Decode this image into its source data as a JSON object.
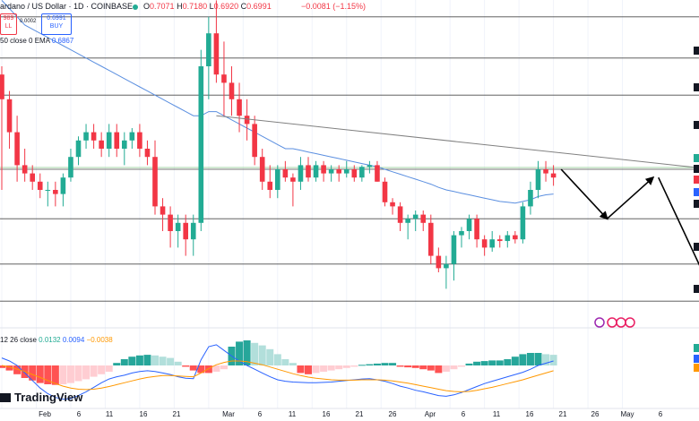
{
  "header": {
    "symbol": "ardano / US Dollar · 1D · COINBASE",
    "o_label": "O",
    "o": "0.7071",
    "h_label": "H",
    "h": "0.7180",
    "l_label": "L",
    "l": "0.6920",
    "c_label": "C",
    "c": "0.6991",
    "change": "−0.0081 (−1.15%)"
  },
  "trade": {
    "sell_price": "989",
    "sell_label": "LL",
    "spread": "0.0002",
    "buy_price": "0.6991",
    "buy_label": "BUY"
  },
  "ema_label": "50 close 0 EMA",
  "ema_value": "0.6867",
  "macd": {
    "label": "12 26 close",
    "v1": "0.0132",
    "v2": "0.0094",
    "v3": "−0.0038"
  },
  "logo": "TradingView",
  "x_ticks": [
    "Feb",
    "6",
    "11",
    "16",
    "21",
    "Mar",
    "6",
    "11",
    "16",
    "21",
    "26",
    "Apr",
    "6",
    "11",
    "16",
    "21",
    "26",
    "May",
    "6"
  ],
  "colors": {
    "up": "#22ab94",
    "down": "#f23645",
    "ema": "#5b8fe0",
    "trend": "#808080",
    "support": "#4a4a4a",
    "green_level": "#a5d6a7",
    "macd_line": "#2962ff",
    "signal_line": "#ff9800",
    "hist_up_strong": "#26a69a",
    "hist_up_weak": "#b2dfdb",
    "hist_down_strong": "#ff5252",
    "hist_down_weak": "#ffcdd2"
  },
  "chart_data": {
    "type": "candlestick",
    "note_axis": "price axis labels are clipped at the right edge",
    "candles": [
      [
        0.69,
        0.7,
        0.55,
        0.66
      ],
      [
        0.66,
        0.67,
        0.6,
        0.62
      ],
      [
        0.62,
        0.64,
        0.56,
        0.58
      ],
      [
        0.58,
        0.6,
        0.56,
        0.57
      ],
      [
        0.57,
        0.58,
        0.55,
        0.56
      ],
      [
        0.56,
        0.57,
        0.54,
        0.55
      ],
      [
        0.55,
        0.56,
        0.53,
        0.55
      ],
      [
        0.55,
        0.56,
        0.53,
        0.545
      ],
      [
        0.545,
        0.57,
        0.53,
        0.565
      ],
      [
        0.565,
        0.6,
        0.56,
        0.59
      ],
      [
        0.59,
        0.615,
        0.58,
        0.61
      ],
      [
        0.61,
        0.63,
        0.6,
        0.62
      ],
      [
        0.62,
        0.63,
        0.6,
        0.61
      ],
      [
        0.61,
        0.62,
        0.59,
        0.6
      ],
      [
        0.6,
        0.63,
        0.59,
        0.62
      ],
      [
        0.62,
        0.63,
        0.59,
        0.6
      ],
      [
        0.6,
        0.62,
        0.58,
        0.61
      ],
      [
        0.61,
        0.625,
        0.6,
        0.62
      ],
      [
        0.62,
        0.63,
        0.59,
        0.6
      ],
      [
        0.6,
        0.61,
        0.58,
        0.59
      ],
      [
        0.59,
        0.61,
        0.52,
        0.53
      ],
      [
        0.53,
        0.54,
        0.5,
        0.52
      ],
      [
        0.52,
        0.53,
        0.48,
        0.5
      ],
      [
        0.5,
        0.52,
        0.48,
        0.51
      ],
      [
        0.51,
        0.52,
        0.47,
        0.49
      ],
      [
        0.49,
        0.52,
        0.47,
        0.51
      ],
      [
        0.51,
        0.72,
        0.5,
        0.7
      ],
      [
        0.7,
        0.76,
        0.66,
        0.74
      ],
      [
        0.74,
        0.78,
        0.68,
        0.69
      ],
      [
        0.69,
        0.73,
        0.64,
        0.68
      ],
      [
        0.68,
        0.7,
        0.64,
        0.66
      ],
      [
        0.66,
        0.68,
        0.62,
        0.64
      ],
      [
        0.64,
        0.66,
        0.61,
        0.63
      ],
      [
        0.63,
        0.64,
        0.58,
        0.59
      ],
      [
        0.59,
        0.6,
        0.55,
        0.56
      ],
      [
        0.56,
        0.58,
        0.54,
        0.55
      ],
      [
        0.55,
        0.58,
        0.54,
        0.575
      ],
      [
        0.575,
        0.585,
        0.56,
        0.565
      ],
      [
        0.565,
        0.57,
        0.53,
        0.56
      ],
      [
        0.56,
        0.59,
        0.55,
        0.58
      ],
      [
        0.58,
        0.59,
        0.56,
        0.565
      ],
      [
        0.565,
        0.585,
        0.56,
        0.58
      ],
      [
        0.58,
        0.585,
        0.56,
        0.57
      ],
      [
        0.57,
        0.58,
        0.56,
        0.575
      ],
      [
        0.575,
        0.58,
        0.56,
        0.57
      ],
      [
        0.57,
        0.585,
        0.565,
        0.575
      ],
      [
        0.575,
        0.58,
        0.56,
        0.565
      ],
      [
        0.565,
        0.58,
        0.56,
        0.578
      ],
      [
        0.578,
        0.585,
        0.57,
        0.58
      ],
      [
        0.58,
        0.585,
        0.56,
        0.56
      ],
      [
        0.56,
        0.565,
        0.53,
        0.535
      ],
      [
        0.535,
        0.54,
        0.52,
        0.53
      ],
      [
        0.53,
        0.535,
        0.5,
        0.51
      ],
      [
        0.51,
        0.52,
        0.49,
        0.515
      ],
      [
        0.515,
        0.525,
        0.5,
        0.52
      ],
      [
        0.52,
        0.525,
        0.5,
        0.51
      ],
      [
        0.51,
        0.52,
        0.46,
        0.47
      ],
      [
        0.47,
        0.48,
        0.45,
        0.455
      ],
      [
        0.455,
        0.47,
        0.43,
        0.46
      ],
      [
        0.46,
        0.5,
        0.44,
        0.495
      ],
      [
        0.495,
        0.505,
        0.48,
        0.5
      ],
      [
        0.5,
        0.52,
        0.49,
        0.515
      ],
      [
        0.515,
        0.52,
        0.48,
        0.49
      ],
      [
        0.49,
        0.495,
        0.47,
        0.48
      ],
      [
        0.48,
        0.5,
        0.475,
        0.49
      ],
      [
        0.49,
        0.495,
        0.48,
        0.488
      ],
      [
        0.488,
        0.5,
        0.48,
        0.495
      ],
      [
        0.495,
        0.5,
        0.485,
        0.49
      ],
      [
        0.49,
        0.535,
        0.485,
        0.53
      ],
      [
        0.53,
        0.56,
        0.52,
        0.55
      ],
      [
        0.55,
        0.585,
        0.54,
        0.575
      ],
      [
        0.575,
        0.585,
        0.56,
        0.57
      ],
      [
        0.57,
        0.58,
        0.555,
        0.565
      ]
    ],
    "ema50": [
      0.78,
      0.77,
      0.76,
      0.75,
      0.745,
      0.74,
      0.735,
      0.73,
      0.725,
      0.72,
      0.715,
      0.71,
      0.705,
      0.7,
      0.695,
      0.69,
      0.685,
      0.68,
      0.675,
      0.67,
      0.665,
      0.66,
      0.655,
      0.65,
      0.645,
      0.64,
      0.64,
      0.645,
      0.645,
      0.64,
      0.635,
      0.63,
      0.625,
      0.62,
      0.615,
      0.61,
      0.605,
      0.6,
      0.6,
      0.598,
      0.596,
      0.594,
      0.592,
      0.59,
      0.588,
      0.586,
      0.584,
      0.582,
      0.58,
      0.578,
      0.575,
      0.572,
      0.569,
      0.566,
      0.563,
      0.56,
      0.557,
      0.553,
      0.55,
      0.548,
      0.546,
      0.544,
      0.542,
      0.54,
      0.538,
      0.536,
      0.535,
      0.534,
      0.536,
      0.538,
      0.542,
      0.544,
      0.545
    ],
    "levels": [
      0.76,
      0.71,
      0.665,
      0.575,
      0.515,
      0.46,
      0.415
    ],
    "green_level": 0.575,
    "trendline": [
      [
        28,
        0.64
      ],
      [
        86,
        0.575
      ]
    ],
    "projection": [
      [
        73,
        0.575
      ],
      [
        79,
        0.515
      ],
      [
        85,
        0.565
      ],
      [
        92,
        0.44
      ]
    ],
    "macd_hist": [
      -0.004,
      -0.008,
      -0.014,
      -0.02,
      -0.024,
      -0.028,
      -0.03,
      -0.031,
      -0.03,
      -0.028,
      -0.025,
      -0.022,
      -0.018,
      -0.014,
      -0.01,
      0.004,
      0.01,
      0.014,
      0.016,
      0.017,
      0.016,
      0.014,
      0.012,
      0.006,
      -0.002,
      -0.008,
      -0.012,
      -0.012,
      -0.01,
      -0.006,
      0.03,
      0.038,
      0.04,
      0.036,
      0.032,
      0.026,
      0.018,
      0.01,
      0.004,
      -0.012,
      -0.014,
      -0.012,
      -0.01,
      -0.008,
      -0.006,
      -0.004,
      -0.002,
      0.001,
      0.002,
      0.003,
      0.004,
      0.004,
      -0.002,
      -0.003,
      -0.004,
      -0.006,
      -0.008,
      -0.012,
      -0.01,
      -0.006,
      -0.002,
      0.003,
      0.006,
      0.007,
      0.008,
      0.008,
      0.01,
      0.014,
      0.018,
      0.02,
      0.02,
      0.018,
      0.017
    ],
    "macd_line": [
      0.02,
      0.012,
      0.0,
      -0.02,
      -0.04,
      -0.06,
      -0.075,
      -0.085,
      -0.09,
      -0.088,
      -0.08,
      -0.07,
      -0.058,
      -0.046,
      -0.036,
      -0.03,
      -0.026,
      -0.02,
      -0.016,
      -0.014,
      -0.016,
      -0.02,
      -0.024,
      -0.03,
      -0.034,
      -0.035,
      0.015,
      0.05,
      0.055,
      0.04,
      0.025,
      0.012,
      0.0,
      -0.01,
      -0.02,
      -0.03,
      -0.038,
      -0.042,
      -0.044,
      -0.045,
      -0.046,
      -0.046,
      -0.045,
      -0.044,
      -0.042,
      -0.04,
      -0.038,
      -0.036,
      -0.035,
      -0.038,
      -0.042,
      -0.048,
      -0.055,
      -0.06,
      -0.066,
      -0.07,
      -0.075,
      -0.08,
      -0.082,
      -0.078,
      -0.072,
      -0.064,
      -0.056,
      -0.048,
      -0.042,
      -0.036,
      -0.03,
      -0.024,
      -0.018,
      -0.01,
      0.0,
      0.006,
      0.012
    ],
    "signal_line": [
      0.0,
      -0.004,
      -0.01,
      -0.016,
      -0.024,
      -0.032,
      -0.04,
      -0.048,
      -0.055,
      -0.06,
      -0.063,
      -0.064,
      -0.063,
      -0.06,
      -0.056,
      -0.051,
      -0.046,
      -0.041,
      -0.036,
      -0.032,
      -0.029,
      -0.027,
      -0.027,
      -0.028,
      -0.029,
      -0.03,
      -0.02,
      -0.008,
      0.002,
      0.008,
      0.012,
      0.012,
      0.01,
      0.006,
      0.002,
      -0.004,
      -0.01,
      -0.016,
      -0.022,
      -0.027,
      -0.031,
      -0.034,
      -0.036,
      -0.038,
      -0.039,
      -0.039,
      -0.039,
      -0.038,
      -0.038,
      -0.038,
      -0.039,
      -0.041,
      -0.044,
      -0.047,
      -0.051,
      -0.055,
      -0.059,
      -0.063,
      -0.067,
      -0.069,
      -0.07,
      -0.069,
      -0.066,
      -0.062,
      -0.058,
      -0.053,
      -0.048,
      -0.043,
      -0.038,
      -0.032,
      -0.026,
      -0.02,
      -0.014
    ]
  }
}
